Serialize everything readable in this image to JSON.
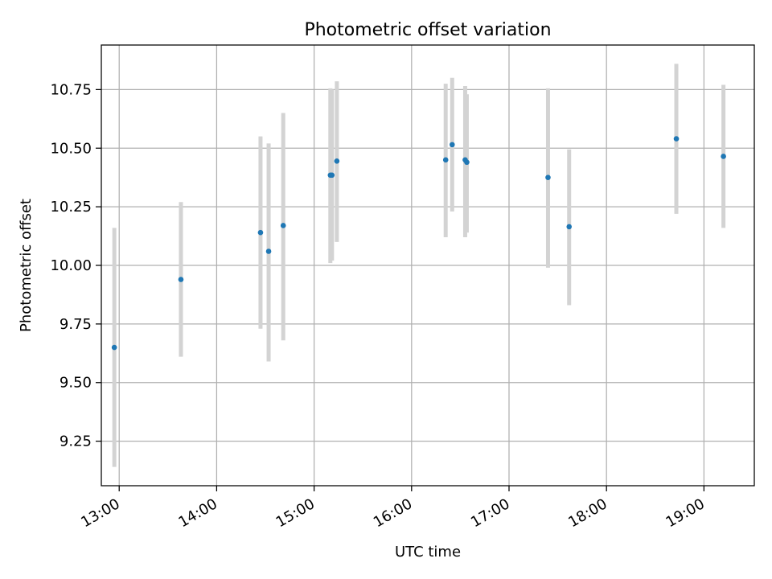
{
  "chart_data": {
    "type": "scatter",
    "title": "Photometric offset variation",
    "xlabel": "UTC time",
    "ylabel": "Photometric offset",
    "x_is_time": true,
    "xlim": [
      "12:49",
      "19:31"
    ],
    "ylim": [
      9.06,
      10.94
    ],
    "x_ticks": [
      "13:00",
      "14:00",
      "15:00",
      "16:00",
      "17:00",
      "18:00",
      "19:00"
    ],
    "y_ticks": [
      "9.25",
      "9.50",
      "9.75",
      "10.00",
      "10.25",
      "10.50",
      "10.75"
    ],
    "grid": true,
    "colors": {
      "point": "#1f77b4",
      "errorbar": "#d3d3d3",
      "grid": "#b0b0b0"
    },
    "points": [
      {
        "x": "12:57",
        "y": 9.65,
        "err_low": 9.14,
        "err_high": 10.16
      },
      {
        "x": "13:38",
        "y": 9.94,
        "err_low": 9.61,
        "err_high": 10.27
      },
      {
        "x": "14:27",
        "y": 10.14,
        "err_low": 9.73,
        "err_high": 10.55
      },
      {
        "x": "14:32",
        "y": 10.06,
        "err_low": 9.59,
        "err_high": 10.52
      },
      {
        "x": "14:41",
        "y": 10.17,
        "err_low": 9.68,
        "err_high": 10.65
      },
      {
        "x": "15:10",
        "y": 10.385,
        "err_low": 10.01,
        "err_high": 10.755
      },
      {
        "x": "15:11",
        "y": 10.385,
        "err_low": 10.02,
        "err_high": 10.75
      },
      {
        "x": "15:14",
        "y": 10.445,
        "err_low": 10.1,
        "err_high": 10.785
      },
      {
        "x": "16:21",
        "y": 10.45,
        "err_low": 10.12,
        "err_high": 10.775
      },
      {
        "x": "16:25",
        "y": 10.515,
        "err_low": 10.23,
        "err_high": 10.8
      },
      {
        "x": "16:33",
        "y": 10.45,
        "err_low": 10.12,
        "err_high": 10.765
      },
      {
        "x": "16:34",
        "y": 10.44,
        "err_low": 10.14,
        "err_high": 10.73
      },
      {
        "x": "17:24",
        "y": 10.375,
        "err_low": 9.99,
        "err_high": 10.755
      },
      {
        "x": "17:37",
        "y": 10.165,
        "err_low": 9.83,
        "err_high": 10.495
      },
      {
        "x": "18:43",
        "y": 10.54,
        "err_low": 10.22,
        "err_high": 10.86
      },
      {
        "x": "19:12",
        "y": 10.465,
        "err_low": 10.16,
        "err_high": 10.77
      }
    ]
  }
}
